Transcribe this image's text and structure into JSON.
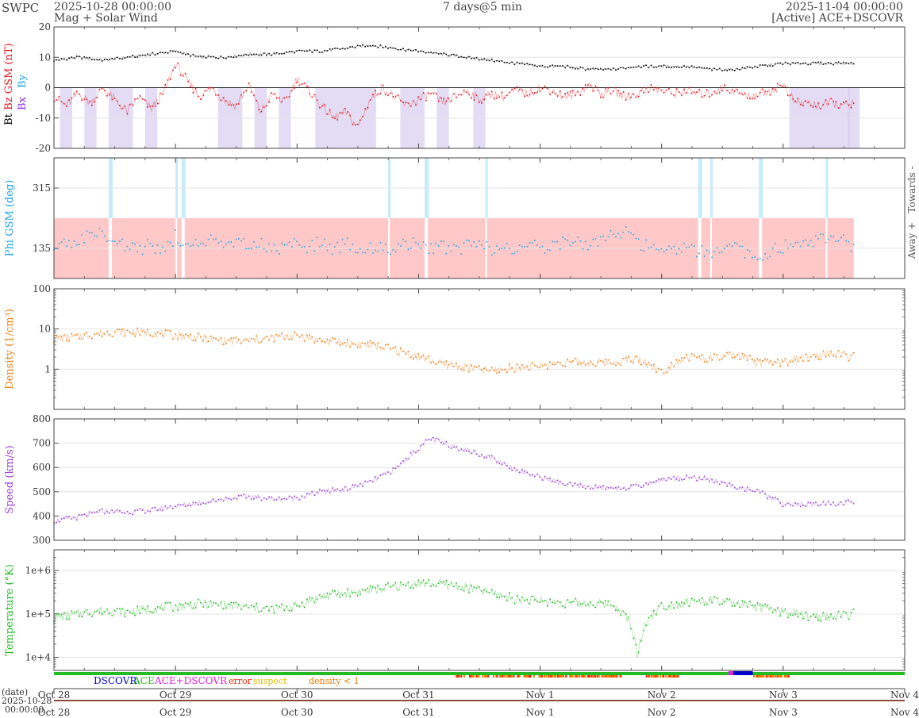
{
  "header": {
    "agency": "SWPC",
    "start_time": "2025-10-28 00:00:00",
    "product": "Mag + Solar Wind",
    "span": "7 days@5 min",
    "end_time": "2025-11-04 00:00:00",
    "source": "[Active] ACE+DSCOVR"
  },
  "legend": {
    "dscovr": "DSCOVR",
    "ace": "ACE",
    "ace_dscovr": "ACE+DSCOVR",
    "error": "error",
    "suspect": "suspect",
    "density_low": "density < 1"
  },
  "bottom_axis": {
    "date_label": "(date)",
    "start_date": "2025-10-28",
    "start_clock": "00:00:00"
  },
  "colors": {
    "bt": "#000000",
    "bz": "#e8171f",
    "bx": "#8a2be2",
    "by": "#1aa3e8",
    "phi": "#1aa3e8",
    "away_band": "#ffc8c8",
    "toward_band": "#c5ecf8",
    "density": "#f07f18",
    "speed": "#9b40d8",
    "temperature": "#22bb22",
    "southward_fill": "#d9d0f0",
    "dscovr": "#0000cc",
    "ace": "#22bb22",
    "ace_dscovr": "#dd22dd",
    "error": "#ee2200",
    "suspect": "#ddbb00",
    "density_flag": "#ee7700"
  },
  "chart_data": [
    {
      "id": "mag",
      "type": "line",
      "ylabel_parts": [
        "Bt",
        "Bz GSM (nT)",
        "Bx",
        "By"
      ],
      "ylim": [
        -20,
        20
      ],
      "yticks": [
        20,
        10,
        0,
        -10,
        -20
      ],
      "grid": true,
      "x_unit": "days since 2025-10-28 00:00",
      "series": [
        {
          "name": "Bt",
          "color_key": "bt",
          "x": [
            0,
            0.2,
            0.4,
            0.6,
            0.8,
            1.0,
            1.2,
            1.4,
            1.6,
            1.8,
            2.0,
            2.2,
            2.4,
            2.6,
            2.8,
            3.0,
            3.2,
            3.4,
            3.6,
            3.8,
            4.0,
            4.2,
            4.4,
            4.6,
            4.8,
            5.0,
            5.2,
            5.4,
            5.6,
            5.8,
            6.0,
            6.2,
            6.4,
            6.58
          ],
          "values": [
            9,
            10,
            9,
            10,
            11,
            12,
            10,
            10,
            11,
            11,
            12,
            12,
            13,
            14,
            13,
            12,
            11,
            10,
            9,
            8,
            7,
            7,
            6,
            6,
            7,
            7,
            7,
            6,
            6,
            7,
            8,
            8,
            8,
            8
          ]
        },
        {
          "name": "Bz",
          "color_key": "bz",
          "x": [
            0,
            0.1,
            0.2,
            0.3,
            0.4,
            0.5,
            0.6,
            0.7,
            0.8,
            0.9,
            1.0,
            1.1,
            1.2,
            1.3,
            1.4,
            1.5,
            1.6,
            1.7,
            1.8,
            1.9,
            2.0,
            2.1,
            2.2,
            2.3,
            2.4,
            2.5,
            2.6,
            2.7,
            2.8,
            2.9,
            3.0,
            3.1,
            3.2,
            3.3,
            3.4,
            3.5,
            3.6,
            3.7,
            3.8,
            3.9,
            4.0,
            4.1,
            4.2,
            4.3,
            4.4,
            4.5,
            4.6,
            4.7,
            4.8,
            4.9,
            5.0,
            5.1,
            5.2,
            5.3,
            5.4,
            5.5,
            5.6,
            5.7,
            5.8,
            5.9,
            6.0,
            6.1,
            6.2,
            6.3,
            6.4,
            6.5,
            6.58
          ],
          "values": [
            -3,
            -6,
            -2,
            -5,
            0,
            -4,
            -8,
            -3,
            -7,
            -2,
            8,
            2,
            -3,
            0,
            -4,
            -6,
            1,
            -8,
            -2,
            -5,
            3,
            -1,
            -6,
            -10,
            -8,
            -13,
            -4,
            0,
            -3,
            -6,
            -4,
            -2,
            -5,
            -3,
            -1,
            -4,
            -2,
            -3,
            -1,
            -2,
            0,
            -1,
            -3,
            -2,
            1,
            -2,
            -1,
            -3,
            -2,
            0,
            -1,
            -2,
            -1,
            -2,
            -2,
            0,
            -1,
            -3,
            -2,
            -1,
            1,
            -5,
            -5,
            -6,
            -5,
            -6,
            -5
          ]
        }
      ]
    },
    {
      "id": "phi",
      "type": "scatter",
      "ylabel": "Phi GSM (deg)",
      "right_labels": [
        "Towards -",
        "Away +"
      ],
      "ylim": [
        45,
        405
      ],
      "yticks": [
        315,
        135
      ],
      "grid": true,
      "x_unit": "days since 2025-10-28 00:00",
      "series": [
        {
          "name": "Phi",
          "color_key": "phi",
          "x": [
            0,
            0.1,
            0.2,
            0.3,
            0.4,
            0.5,
            0.6,
            0.7,
            0.8,
            0.9,
            1.0,
            1.1,
            1.2,
            1.3,
            1.4,
            1.5,
            1.6,
            1.7,
            1.8,
            1.9,
            2.0,
            2.1,
            2.2,
            2.3,
            2.4,
            2.5,
            2.6,
            2.7,
            2.8,
            2.9,
            3.0,
            3.1,
            3.2,
            3.3,
            3.4,
            3.5,
            3.6,
            3.7,
            3.8,
            3.9,
            4.0,
            4.1,
            4.2,
            4.3,
            4.4,
            4.5,
            4.6,
            4.7,
            4.8,
            4.9,
            5.0,
            5.1,
            5.2,
            5.3,
            5.4,
            5.5,
            5.6,
            5.7,
            5.8,
            5.9,
            6.0,
            6.1,
            6.2,
            6.3,
            6.4,
            6.5,
            6.58
          ],
          "values": [
            140,
            150,
            160,
            170,
            180,
            160,
            140,
            130,
            150,
            120,
            170,
            150,
            140,
            160,
            135,
            150,
            140,
            145,
            130,
            140,
            150,
            140,
            155,
            130,
            150,
            135,
            140,
            140,
            135,
            145,
            150,
            130,
            140,
            125,
            145,
            150,
            130,
            140,
            120,
            150,
            135,
            145,
            155,
            150,
            140,
            160,
            170,
            190,
            150,
            140,
            140,
            130,
            150,
            125,
            120,
            130,
            140,
            120,
            110,
            125,
            140,
            150,
            160,
            160,
            170,
            175,
            130
          ]
        }
      ]
    },
    {
      "id": "density",
      "type": "line",
      "ylabel": "Density (1/cm³)",
      "yscale": "log",
      "ylim": [
        0.1,
        100
      ],
      "yticks": [
        100,
        10,
        1
      ],
      "ytick_labels": [
        "100",
        "10",
        "1"
      ],
      "grid": true,
      "x_unit": "days since 2025-10-28 00:00",
      "series": [
        {
          "name": "Density",
          "color_key": "density",
          "x": [
            0,
            0.2,
            0.4,
            0.6,
            0.8,
            1.0,
            1.2,
            1.4,
            1.6,
            1.8,
            2.0,
            2.2,
            2.4,
            2.6,
            2.8,
            3.0,
            3.2,
            3.4,
            3.6,
            3.8,
            4.0,
            4.2,
            4.4,
            4.6,
            4.8,
            5.0,
            5.2,
            5.4,
            5.6,
            5.8,
            6.0,
            6.2,
            6.4,
            6.58
          ],
          "values": [
            5.5,
            6.5,
            8,
            8.5,
            8,
            7,
            6,
            5,
            5,
            6,
            7,
            5,
            4.5,
            4,
            3,
            2,
            1.3,
            1.1,
            0.9,
            1.1,
            1.2,
            1.5,
            1.4,
            1.5,
            1.8,
            0.8,
            2,
            1.8,
            2.2,
            1.4,
            1.5,
            2,
            2.4,
            2
          ]
        }
      ]
    },
    {
      "id": "speed",
      "type": "line",
      "ylabel": "Speed (km/s)",
      "ylim": [
        300,
        800
      ],
      "yticks": [
        800,
        700,
        600,
        500,
        400,
        300
      ],
      "grid": true,
      "x_unit": "days since 2025-10-28 00:00",
      "series": [
        {
          "name": "Speed",
          "color_key": "speed",
          "x": [
            0,
            0.2,
            0.4,
            0.6,
            0.8,
            1.0,
            1.2,
            1.4,
            1.6,
            1.8,
            2.0,
            2.2,
            2.4,
            2.6,
            2.8,
            3.0,
            3.1,
            3.2,
            3.4,
            3.6,
            3.8,
            4.0,
            4.2,
            4.4,
            4.6,
            4.8,
            5.0,
            5.2,
            5.4,
            5.6,
            5.8,
            6.0,
            6.2,
            6.4,
            6.58
          ],
          "values": [
            380,
            395,
            420,
            415,
            425,
            440,
            455,
            470,
            480,
            470,
            475,
            500,
            510,
            540,
            590,
            680,
            720,
            700,
            670,
            640,
            590,
            560,
            530,
            520,
            515,
            520,
            550,
            560,
            550,
            520,
            500,
            450,
            445,
            450,
            460
          ]
        }
      ]
    },
    {
      "id": "temperature",
      "type": "line",
      "ylabel": "Temperature (°K)",
      "yscale": "log",
      "ylim": [
        5000,
        3000000
      ],
      "yticks": [
        1000000,
        100000,
        10000
      ],
      "ytick_labels": [
        "1e+6",
        "1e+5",
        "1e+4"
      ],
      "grid": true,
      "x_unit": "days since 2025-10-28 00:00",
      "series": [
        {
          "name": "Temperature",
          "color_key": "temperature",
          "x": [
            0,
            0.2,
            0.4,
            0.6,
            0.8,
            1.0,
            1.2,
            1.4,
            1.6,
            1.8,
            2.0,
            2.2,
            2.4,
            2.6,
            2.8,
            3.0,
            3.2,
            3.4,
            3.6,
            3.8,
            4.0,
            4.2,
            4.4,
            4.6,
            4.8,
            5.0,
            5.2,
            5.4,
            5.6,
            5.8,
            6.0,
            6.2,
            6.4,
            6.58
          ],
          "values": [
            80000,
            100000,
            120000,
            110000,
            130000,
            150000,
            170000,
            160000,
            140000,
            130000,
            150000,
            250000,
            300000,
            350000,
            420000,
            500000,
            480000,
            400000,
            300000,
            220000,
            200000,
            180000,
            170000,
            170000,
            8000,
            150000,
            180000,
            200000,
            170000,
            140000,
            110000,
            90000,
            85000,
            100000
          ]
        }
      ]
    }
  ],
  "x_axis": {
    "range_days": [
      0,
      7
    ],
    "ticks": [
      "Oct 28",
      "Oct 29",
      "Oct 30",
      "Oct 31",
      "Nov 1",
      "Nov 2",
      "Nov 3",
      "Nov 4"
    ]
  }
}
